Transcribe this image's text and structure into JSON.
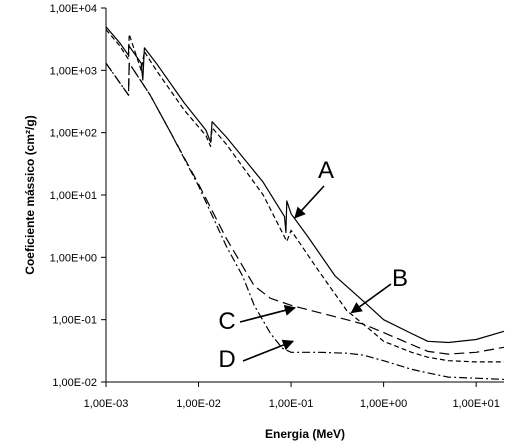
{
  "chart_data": {
    "type": "line",
    "xscale": "log",
    "yscale": "log",
    "xlim": [
      0.001,
      20
    ],
    "ylim": [
      0.01,
      10000
    ],
    "xlabel": "Energia (MeV)",
    "ylabel": "Coeficiente mássico (cm²/g)",
    "xticks": [
      "1,00E-03",
      "1,00E-02",
      "1,00E-01",
      "1,00E+00",
      "1,00E+01"
    ],
    "yticks": [
      "1,00E-02",
      "1,00E-01",
      "1,00E+00",
      "1,00E+01",
      "1,00E+02",
      "1,00E+03",
      "1,00E+04"
    ],
    "grid": false,
    "legend": "none",
    "series": [
      {
        "id": "A",
        "style": "solid",
        "points": [
          [
            0.001,
            5000
          ],
          [
            0.0014,
            2800
          ],
          [
            0.00175,
            1750
          ],
          [
            0.00176,
            2500
          ],
          [
            0.0024,
            1300
          ],
          [
            0.0025,
            700
          ],
          [
            0.0026,
            2300
          ],
          [
            0.0035,
            1300
          ],
          [
            0.007,
            300
          ],
          [
            0.012,
            110
          ],
          [
            0.0135,
            70
          ],
          [
            0.014,
            150
          ],
          [
            0.02,
            85
          ],
          [
            0.05,
            16
          ],
          [
            0.085,
            4.5
          ],
          [
            0.088,
            2.5
          ],
          [
            0.09,
            8
          ],
          [
            0.1,
            5
          ],
          [
            0.15,
            2.2
          ],
          [
            0.3,
            0.5
          ],
          [
            0.6,
            0.2
          ],
          [
            1.0,
            0.1
          ],
          [
            2.0,
            0.06
          ],
          [
            3.0,
            0.045
          ],
          [
            5.0,
            0.043
          ],
          [
            10.0,
            0.048
          ],
          [
            20.0,
            0.065
          ]
        ]
      },
      {
        "id": "B",
        "style": "dashed",
        "points": [
          [
            0.001,
            4500
          ],
          [
            0.0014,
            2500
          ],
          [
            0.00175,
            1500
          ],
          [
            0.00178,
            3800
          ],
          [
            0.0024,
            1000
          ],
          [
            0.0026,
            2000
          ],
          [
            0.0035,
            1000
          ],
          [
            0.007,
            230
          ],
          [
            0.012,
            90
          ],
          [
            0.0135,
            60
          ],
          [
            0.014,
            120
          ],
          [
            0.02,
            65
          ],
          [
            0.05,
            10
          ],
          [
            0.09,
            1.8
          ],
          [
            0.1,
            2.7
          ],
          [
            0.2,
            0.6
          ],
          [
            0.4,
            0.14
          ],
          [
            0.8,
            0.06
          ],
          [
            1.0,
            0.045
          ],
          [
            2.0,
            0.03
          ],
          [
            3.0,
            0.025
          ],
          [
            5.0,
            0.022
          ],
          [
            10.0,
            0.021
          ],
          [
            20.0,
            0.021
          ]
        ]
      },
      {
        "id": "C",
        "style": "long-dash",
        "points": [
          [
            0.001,
            1300
          ],
          [
            0.00175,
            400
          ],
          [
            0.00178,
            1300
          ],
          [
            0.003,
            400
          ],
          [
            0.005,
            100
          ],
          [
            0.01,
            15
          ],
          [
            0.02,
            2.0
          ],
          [
            0.04,
            0.35
          ],
          [
            0.06,
            0.22
          ],
          [
            0.1,
            0.17
          ],
          [
            0.2,
            0.13
          ],
          [
            0.4,
            0.1
          ],
          [
            0.6,
            0.085
          ],
          [
            1.0,
            0.062
          ],
          [
            2.0,
            0.04
          ],
          [
            3.0,
            0.031
          ],
          [
            5.0,
            0.028
          ],
          [
            10.0,
            0.03
          ],
          [
            20.0,
            0.036
          ]
        ]
      },
      {
        "id": "D",
        "style": "dash-dot",
        "points": [
          [
            0.001,
            1300
          ],
          [
            0.00175,
            400
          ],
          [
            0.00178,
            1300
          ],
          [
            0.003,
            400
          ],
          [
            0.005,
            100
          ],
          [
            0.01,
            14
          ],
          [
            0.02,
            1.5
          ],
          [
            0.03,
            0.5
          ],
          [
            0.04,
            0.17
          ],
          [
            0.06,
            0.06
          ],
          [
            0.08,
            0.035
          ],
          [
            0.1,
            0.03
          ],
          [
            0.2,
            0.03
          ],
          [
            0.4,
            0.029
          ],
          [
            0.6,
            0.027
          ],
          [
            1.0,
            0.022
          ],
          [
            2.0,
            0.016
          ],
          [
            3.0,
            0.014
          ],
          [
            5.0,
            0.012
          ],
          [
            10.0,
            0.0115
          ],
          [
            20.0,
            0.011
          ]
        ]
      }
    ],
    "annotations": [
      {
        "label": "A",
        "target": [
          0.11,
          4.3
        ]
      },
      {
        "label": "B",
        "target": [
          0.45,
          0.13
        ]
      },
      {
        "label": "C",
        "target": [
          0.11,
          0.155
        ]
      },
      {
        "label": "D",
        "target": [
          0.105,
          0.045
        ]
      }
    ]
  }
}
